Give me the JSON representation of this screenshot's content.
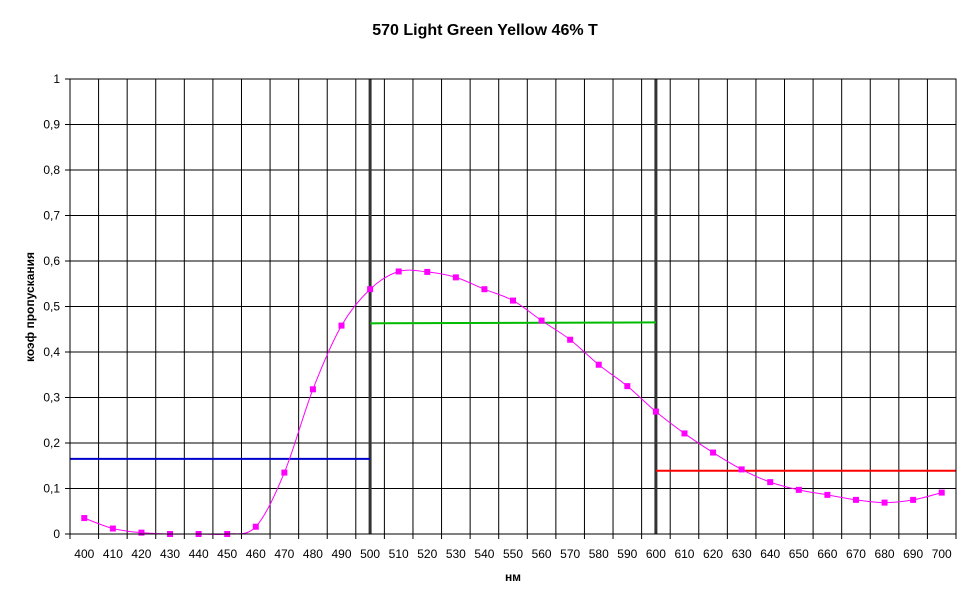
{
  "chart_data": {
    "type": "line",
    "title": "570 Light Green Yellow 46% T",
    "xlabel": "нм",
    "ylabel": "коэф пропускания",
    "xlim": [
      400,
      700
    ],
    "ylim": [
      0,
      1
    ],
    "grid": true,
    "x_ticks": [
      "400",
      "410",
      "420",
      "430",
      "440",
      "450",
      "460",
      "470",
      "480",
      "490",
      "500",
      "510",
      "520",
      "530",
      "540",
      "550",
      "560",
      "570",
      "580",
      "590",
      "600",
      "610",
      "620",
      "630",
      "640",
      "650",
      "660",
      "670",
      "680",
      "690",
      "700"
    ],
    "y_ticks": [
      "0",
      "0,1",
      "0,2",
      "0,3",
      "0,4",
      "0,5",
      "0,6",
      "0,7",
      "0,8",
      "0,9",
      "1"
    ],
    "series": [
      {
        "type": "line-markers",
        "color": "#ff00ff",
        "x": [
          400,
          410,
          420,
          430,
          440,
          450,
          460,
          470,
          480,
          490,
          500,
          510,
          520,
          530,
          540,
          550,
          560,
          570,
          580,
          590,
          600,
          610,
          620,
          630,
          640,
          650,
          660,
          670,
          680,
          690,
          700
        ],
        "values": [
          0.035,
          0.012,
          0.003,
          0.0,
          0.0,
          0.0,
          0.016,
          0.135,
          0.318,
          0.458,
          0.538,
          0.577,
          0.576,
          0.564,
          0.538,
          0.513,
          0.469,
          0.427,
          0.372,
          0.325,
          0.269,
          0.221,
          0.179,
          0.142,
          0.114,
          0.097,
          0.086,
          0.075,
          0.069,
          0.075,
          0.091
        ]
      },
      {
        "type": "band-average",
        "color": "#0000cc",
        "x": [
          400,
          500
        ],
        "values": [
          0.165,
          0.165
        ]
      },
      {
        "type": "band-average",
        "color": "#00bb00",
        "x": [
          500,
          600
        ],
        "values": [
          0.463,
          0.465
        ]
      },
      {
        "type": "band-average",
        "color": "#ff0000",
        "x": [
          600,
          710
        ],
        "values": [
          0.139,
          0.139
        ]
      }
    ],
    "band_boundaries": [
      500,
      600
    ],
    "boundary_color": "#333333"
  }
}
